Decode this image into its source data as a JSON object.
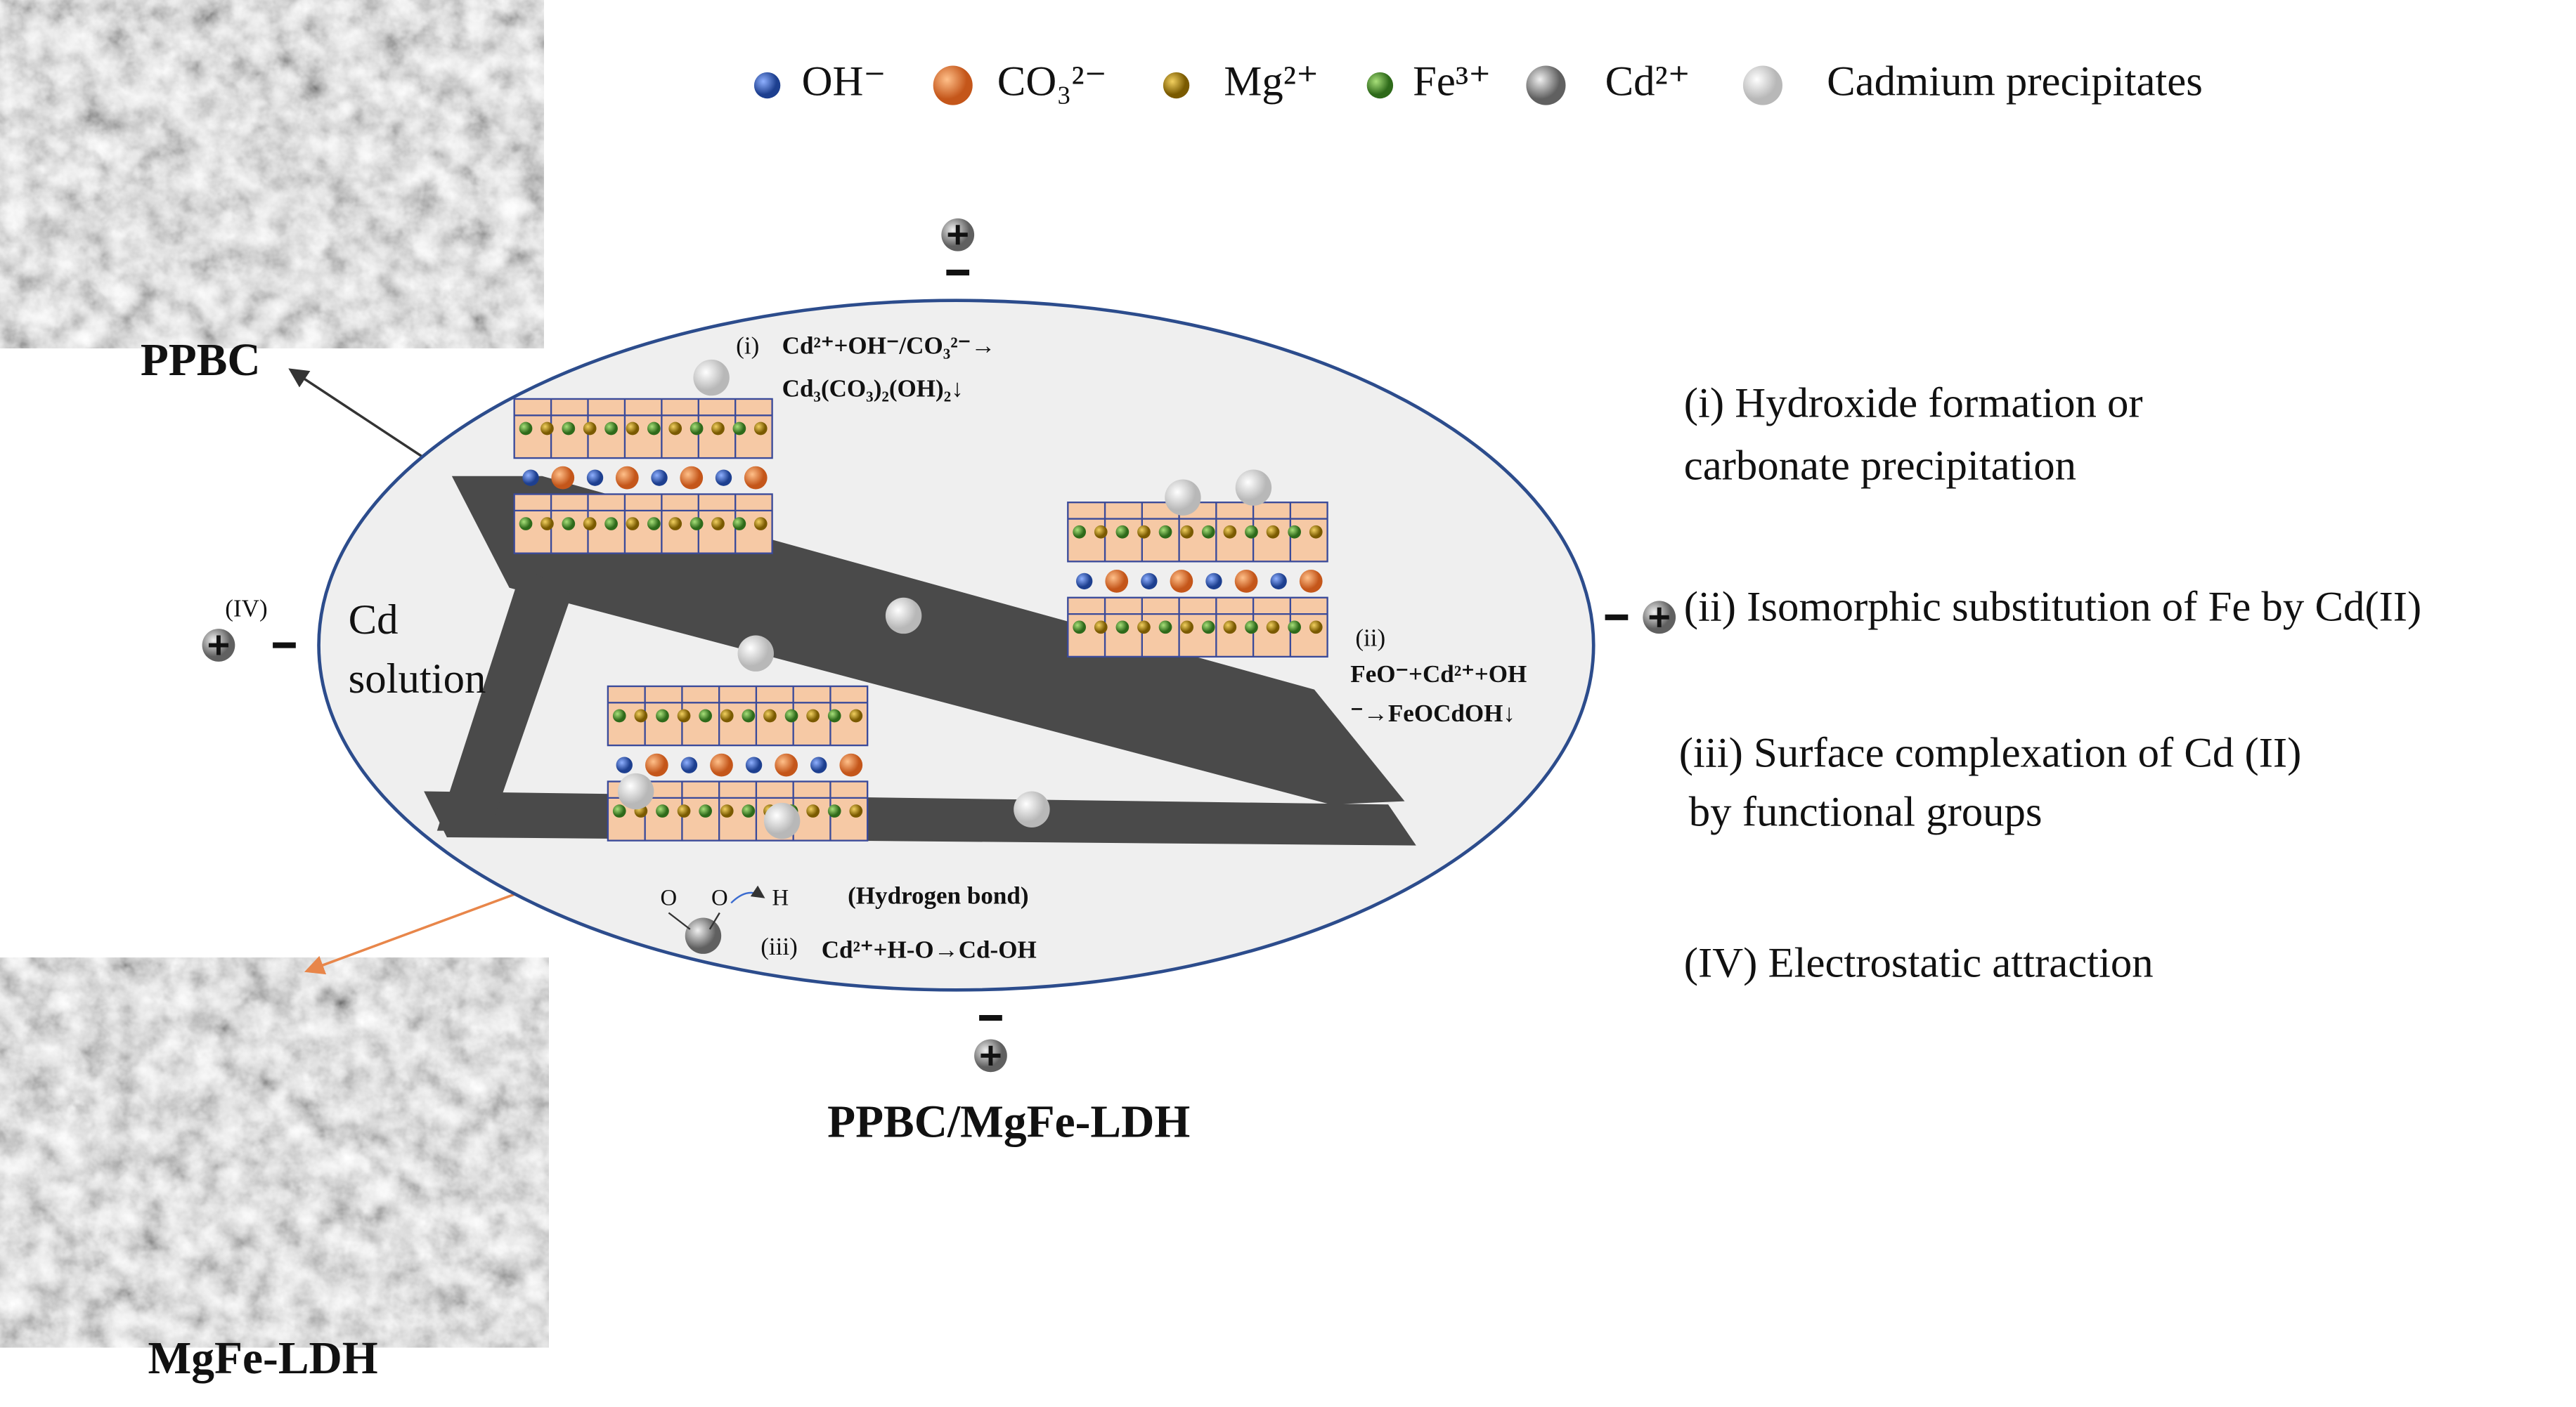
{
  "legend": [
    "OH⁻",
    "CO₃²⁻",
    "Mg²⁺",
    "Fe³⁺",
    "Cd²⁺",
    "Cadmium precipitates"
  ],
  "images": {
    "ppbc": "PPBC",
    "ldh": "MgFe-LDH"
  },
  "composite_label": "PPBC/MgFe-LDH",
  "solution_label": [
    "Cd",
    "solution"
  ],
  "reactions": {
    "i": {
      "tag": "(i)",
      "lines": [
        "Cd²⁺+OH⁻/CO₃²⁻→",
        "Cd₃(CO₃)₂(OH)₂↓"
      ]
    },
    "ii": {
      "tag": "(ii)",
      "lines": [
        "FeO⁻+Cd²⁺+OH",
        "⁻→FeOCdOH↓"
      ]
    },
    "iii": {
      "tag": "(iii)",
      "text": "Cd²⁺+H-O→Cd-OH",
      "note": "(Hydrogen bond)",
      "atoms": [
        "O",
        "O",
        "H"
      ]
    },
    "iv": {
      "tag": "(IV)"
    }
  },
  "mechanisms": [
    [
      "(i) Hydroxide formation or",
      "carbonate precipitation"
    ],
    [
      "(ii) Isomorphic substitution of Fe by Cd(II)"
    ],
    [
      "(iii) Surface complexation of Cd (II)",
      " by functional groups"
    ],
    [
      "(IV) Electrostatic attraction"
    ]
  ]
}
